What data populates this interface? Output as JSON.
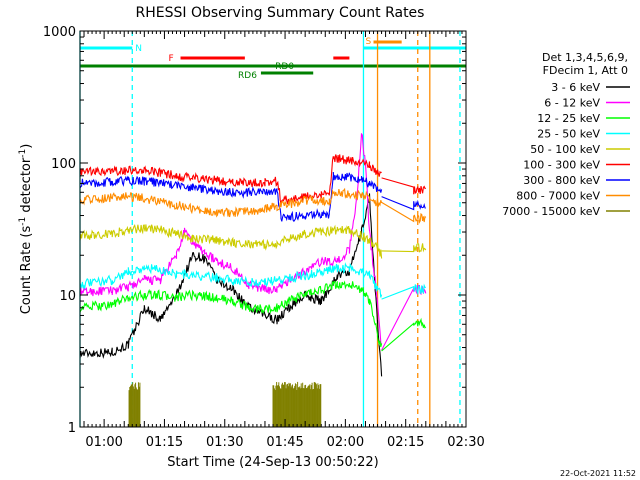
{
  "chart_data": {
    "type": "line",
    "title": "RHESSI Observing Summary Count Rates",
    "xlabel": "Start Time (24-Sep-13 00:50:22)",
    "ylabel": "Count Rate (s⁻¹ detector⁻¹)",
    "ylabel_parts": {
      "main": "Count Rate (s",
      "exp1": "-1",
      "mid": " detector",
      "exp2": "-1",
      "end": ")"
    },
    "y_scale": "log",
    "ylim": [
      1,
      1000
    ],
    "y_ticks": [
      1,
      10,
      100,
      1000
    ],
    "y_tick_labels": [
      "1",
      "10",
      "100",
      "1000"
    ],
    "xlim_min": [
      54,
      150
    ],
    "x_ticks_min": [
      60,
      75,
      90,
      105,
      120,
      135,
      150
    ],
    "x_tick_labels": [
      "01:00",
      "01:15",
      "01:30",
      "01:45",
      "02:00",
      "02:15",
      "02:30"
    ],
    "grid": false,
    "legend_position": "right",
    "legend_header": [
      "Det 1,3,4,5,6,9,",
      "FDecim 1, Att 0"
    ],
    "series": [
      {
        "name": "3 - 6 keV",
        "color": "#000000",
        "points": [
          [
            54,
            3.6
          ],
          [
            62,
            3.7
          ],
          [
            66,
            4.2
          ],
          [
            70,
            8
          ],
          [
            74,
            6.5
          ],
          [
            78,
            10
          ],
          [
            82,
            20
          ],
          [
            85,
            19
          ],
          [
            88,
            13
          ],
          [
            92,
            11
          ],
          [
            96,
            8
          ],
          [
            100,
            7
          ],
          [
            103,
            6.5
          ],
          [
            106,
            8
          ],
          [
            110,
            10
          ],
          [
            114,
            9
          ],
          [
            118,
            14
          ],
          [
            121,
            15
          ],
          [
            124,
            30
          ],
          [
            126,
            55
          ],
          [
            128,
            6
          ],
          [
            129,
            2.5
          ]
        ]
      },
      {
        "name": "6 - 12 keV",
        "color": "#ff00ff",
        "points": [
          [
            54,
            10.5
          ],
          [
            62,
            10.8
          ],
          [
            66,
            11.5
          ],
          [
            70,
            13
          ],
          [
            74,
            13
          ],
          [
            78,
            20
          ],
          [
            80,
            30
          ],
          [
            82,
            25
          ],
          [
            85,
            21
          ],
          [
            88,
            18
          ],
          [
            92,
            16
          ],
          [
            96,
            12
          ],
          [
            100,
            11
          ],
          [
            103,
            11
          ],
          [
            106,
            13
          ],
          [
            110,
            15
          ],
          [
            114,
            18
          ],
          [
            118,
            18
          ],
          [
            121,
            22
          ],
          [
            123,
            60
          ],
          [
            124,
            170
          ],
          [
            125,
            100
          ],
          [
            126,
            30
          ],
          [
            128,
            9
          ],
          [
            129,
            4
          ],
          [
            137,
            11
          ],
          [
            140,
            11
          ]
        ]
      },
      {
        "name": "12 - 25 keV",
        "color": "#00ff00",
        "points": [
          [
            54,
            8
          ],
          [
            62,
            8.5
          ],
          [
            66,
            9.5
          ],
          [
            70,
            10
          ],
          [
            74,
            10
          ],
          [
            78,
            9.5
          ],
          [
            82,
            10
          ],
          [
            88,
            9.5
          ],
          [
            92,
            9
          ],
          [
            96,
            8
          ],
          [
            100,
            7.8
          ],
          [
            103,
            8
          ],
          [
            106,
            9
          ],
          [
            110,
            10
          ],
          [
            114,
            11
          ],
          [
            118,
            12
          ],
          [
            121,
            12
          ],
          [
            124,
            11
          ],
          [
            126,
            9
          ],
          [
            128,
            5
          ],
          [
            129,
            4
          ],
          [
            137,
            6
          ],
          [
            140,
            6
          ]
        ]
      },
      {
        "name": "25 - 50 keV",
        "color": "#00ffff",
        "points": [
          [
            54,
            12
          ],
          [
            62,
            13
          ],
          [
            66,
            15
          ],
          [
            70,
            16
          ],
          [
            74,
            15.5
          ],
          [
            78,
            14.5
          ],
          [
            82,
            14
          ],
          [
            88,
            13.5
          ],
          [
            92,
            13
          ],
          [
            96,
            12.5
          ],
          [
            100,
            12.5
          ],
          [
            103,
            13
          ],
          [
            106,
            13.5
          ],
          [
            110,
            14
          ],
          [
            114,
            15
          ],
          [
            118,
            16
          ],
          [
            121,
            16
          ],
          [
            124,
            15
          ],
          [
            126,
            14
          ],
          [
            128,
            11
          ],
          [
            129,
            10
          ],
          [
            137,
            11
          ],
          [
            140,
            11
          ]
        ]
      },
      {
        "name": "50 - 100 keV",
        "color": "#cccc00",
        "points": [
          [
            54,
            28
          ],
          [
            62,
            29
          ],
          [
            66,
            31
          ],
          [
            70,
            32
          ],
          [
            74,
            31
          ],
          [
            78,
            29
          ],
          [
            82,
            27
          ],
          [
            88,
            26
          ],
          [
            92,
            25
          ],
          [
            96,
            24.5
          ],
          [
            100,
            24
          ],
          [
            103,
            24
          ],
          [
            106,
            27
          ],
          [
            110,
            29
          ],
          [
            114,
            30
          ],
          [
            118,
            31
          ],
          [
            121,
            31
          ],
          [
            124,
            28
          ],
          [
            126,
            26
          ],
          [
            128,
            23
          ],
          [
            129,
            20
          ],
          [
            137,
            23
          ],
          [
            140,
            23
          ]
        ]
      },
      {
        "name": "100 - 300 keV",
        "color": "#ff0000",
        "points": [
          [
            54,
            85
          ],
          [
            62,
            86
          ],
          [
            66,
            88
          ],
          [
            70,
            87
          ],
          [
            74,
            84
          ],
          [
            78,
            80
          ],
          [
            82,
            77
          ],
          [
            88,
            74
          ],
          [
            92,
            72
          ],
          [
            96,
            71
          ],
          [
            100,
            72
          ],
          [
            103,
            73
          ],
          [
            104,
            52
          ],
          [
            110,
            55
          ],
          [
            114,
            57
          ],
          [
            116,
            57
          ],
          [
            117,
            110
          ],
          [
            121,
            105
          ],
          [
            124,
            100
          ],
          [
            126,
            95
          ],
          [
            128,
            85
          ],
          [
            129,
            80
          ],
          [
            137,
            62
          ],
          [
            140,
            62
          ]
        ]
      },
      {
        "name": "300 - 800 keV",
        "color": "#0000ff",
        "points": [
          [
            54,
            70
          ],
          [
            62,
            72
          ],
          [
            66,
            74
          ],
          [
            70,
            73
          ],
          [
            74,
            71
          ],
          [
            78,
            68
          ],
          [
            82,
            65
          ],
          [
            88,
            62
          ],
          [
            92,
            60
          ],
          [
            96,
            60
          ],
          [
            100,
            60
          ],
          [
            103,
            60
          ],
          [
            104,
            38
          ],
          [
            110,
            40
          ],
          [
            114,
            41
          ],
          [
            116,
            41
          ],
          [
            117,
            80
          ],
          [
            121,
            78
          ],
          [
            124,
            75
          ],
          [
            126,
            70
          ],
          [
            128,
            65
          ],
          [
            129,
            60
          ],
          [
            137,
            48
          ],
          [
            140,
            48
          ]
        ]
      },
      {
        "name": "800 - 7000 keV",
        "color": "#ff8c00",
        "points": [
          [
            54,
            53
          ],
          [
            62,
            55
          ],
          [
            66,
            56
          ],
          [
            70,
            54
          ],
          [
            74,
            51
          ],
          [
            78,
            48
          ],
          [
            82,
            45
          ],
          [
            88,
            43
          ],
          [
            92,
            42
          ],
          [
            96,
            43
          ],
          [
            100,
            45
          ],
          [
            103,
            47
          ],
          [
            106,
            49
          ],
          [
            110,
            52
          ],
          [
            114,
            52
          ],
          [
            116,
            50
          ],
          [
            117,
            60
          ],
          [
            121,
            58
          ],
          [
            124,
            57
          ],
          [
            126,
            54
          ],
          [
            128,
            50
          ],
          [
            129,
            48
          ],
          [
            137,
            38
          ],
          [
            140,
            38
          ]
        ]
      },
      {
        "name": "7000 - 15000 keV",
        "color": "#808000",
        "points": [
          [
            66.2,
            1.9
          ],
          [
            69,
            1.9
          ],
          [
            102,
            1.9
          ],
          [
            114,
            1.9
          ]
        ]
      }
    ],
    "top_bars": {
      "N": {
        "label": "N",
        "color": "#00ffff",
        "ranges_min": [
          [
            54,
            67
          ],
          [
            124.5,
            150
          ]
        ]
      },
      "F": {
        "label": "F",
        "color": "#ff0000",
        "ranges_min": [
          [
            79,
            95
          ],
          [
            117,
            121
          ]
        ]
      },
      "S": {
        "label": "S",
        "color": "#ff8c00",
        "ranges_min": [
          [
            127,
            134
          ]
        ]
      },
      "RD0": {
        "label": "RD0",
        "color": "#008000",
        "ranges_min": [
          [
            54,
            150
          ]
        ]
      },
      "RD6": {
        "label": "RD6",
        "color": "#008000",
        "ranges_min": [
          [
            99,
            112
          ]
        ]
      }
    },
    "vertical_markers": [
      {
        "x_min": 54,
        "color": "#00ffff",
        "style": "solid"
      },
      {
        "x_min": 67,
        "color": "#00ffff",
        "style": "dashed"
      },
      {
        "x_min": 124.5,
        "color": "#00ffff",
        "style": "solid"
      },
      {
        "x_min": 148.5,
        "color": "#00ffff",
        "style": "dashed"
      },
      {
        "x_min": 128,
        "color": "#ff8c00",
        "style": "solid"
      },
      {
        "x_min": 138,
        "color": "#ff8c00",
        "style": "dashed"
      },
      {
        "x_min": 141,
        "color": "#ff8c00",
        "style": "solid"
      }
    ],
    "date_stamp": "22-Oct-2021 11:52"
  }
}
